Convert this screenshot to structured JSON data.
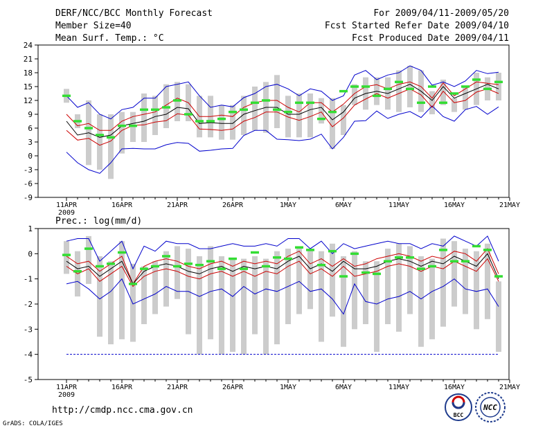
{
  "header": {
    "title": "DERF/NCC/BCC Monthly Forecast",
    "member": "Member Size=40",
    "for_range": "For 2009/04/11-2009/05/20",
    "started": "Fcst Started Refer Date 2009/04/10",
    "produced": "Fcst Produced Date 2009/04/11"
  },
  "footer": {
    "url": "http://cmdp.ncc.cma.gov.cn",
    "grads": "GrADS: COLA/IGES",
    "logo_bcc": "BCC",
    "logo_ncc": "NCC"
  },
  "colors": {
    "obs": "#33dd33",
    "box": "#cccccc",
    "mean": "#000000",
    "ens": "#cc0000",
    "ext": "#0000cc"
  },
  "chart_data": [
    {
      "type": "line",
      "title": "Mean Surf. Temp.: °C",
      "x_start": "2009-04-11",
      "x_days": 40,
      "xtick_labels": [
        "11APR",
        "16APR",
        "21APR",
        "26APR",
        "1MAY",
        "6MAY",
        "11MAY",
        "16MAY",
        "21MAY"
      ],
      "xtick_days": [
        0,
        5,
        10,
        15,
        20,
        25,
        30,
        35,
        40
      ],
      "x_year_label": "2009",
      "ylim": [
        -9,
        24
      ],
      "yticks": [
        -9,
        -6,
        -3,
        0,
        3,
        6,
        9,
        12,
        15,
        18,
        21,
        24
      ],
      "series": [
        {
          "name": "ensemble max",
          "values": [
            0.8,
            -1.5,
            -3,
            -3.8,
            -1.5,
            1.5,
            1.6,
            1.5,
            1.5,
            2.4,
            2.9,
            2.7,
            1,
            1.2,
            1.5,
            1.6,
            4.4,
            5.5,
            5.5,
            3.6,
            3.5,
            3.3,
            3.6,
            4.7,
            1.5,
            4,
            7.5,
            7.6,
            9.7,
            8.1,
            9,
            9.6,
            8.3,
            10.8,
            8.5,
            7.5,
            10,
            10.7,
            9,
            10.6
          ]
        },
        {
          "name": "ensemble upper",
          "values": [
            5.5,
            3.4,
            3.8,
            2.3,
            3.2,
            5.5,
            6.6,
            6.7,
            7.3,
            7.6,
            9.1,
            8.8,
            5.8,
            5.7,
            5.5,
            5.8,
            7.5,
            8.3,
            9.5,
            9.5,
            8.4,
            7.7,
            8.5,
            9.5,
            6.3,
            8.2,
            11,
            12.3,
            13.5,
            12.5,
            13.5,
            14.5,
            13.2,
            10.5,
            14,
            11.5,
            12,
            13.8,
            14.5,
            13.5
          ]
        },
        {
          "name": "ensemble mean",
          "values": [
            7.5,
            4.5,
            5,
            4,
            4.5,
            6.5,
            7,
            7.5,
            8.5,
            9,
            10.5,
            10.2,
            7,
            7.2,
            7,
            7,
            9,
            9.8,
            10.5,
            10.5,
            9,
            9,
            10,
            10.5,
            7.8,
            9.5,
            12.5,
            13.5,
            14,
            13.5,
            14.5,
            15.5,
            14,
            12,
            15,
            12.5,
            13.5,
            14.5,
            15.5,
            14.5
          ]
        },
        {
          "name": "ensemble lower",
          "values": [
            9,
            6.5,
            7,
            5.5,
            5.5,
            7.5,
            8.5,
            9,
            9.5,
            11,
            12.5,
            11.5,
            8.5,
            8.5,
            8.8,
            8.5,
            10.5,
            11.5,
            12,
            12,
            10.5,
            9.5,
            11.5,
            11.5,
            9.5,
            11.2,
            13.5,
            15,
            15.4,
            14.5,
            15.5,
            16,
            15,
            12.5,
            15.8,
            13,
            14.5,
            16,
            15.7,
            15.4
          ]
        },
        {
          "name": "ensemble min",
          "values": [
            13,
            10.5,
            11.5,
            9,
            8,
            10,
            10.5,
            12.5,
            12.5,
            15,
            15.5,
            16,
            13,
            10.5,
            11,
            10.6,
            12.6,
            13.5,
            15,
            15.5,
            14.5,
            13,
            14.5,
            14,
            12,
            13,
            17.5,
            18.5,
            16.5,
            17.5,
            18,
            19.5,
            18.5,
            15.3,
            16,
            15,
            16.2,
            18.5,
            17.8,
            18.1
          ]
        },
        {
          "name": "observed",
          "values": [
            13,
            7.5,
            6,
            4.5,
            4,
            6.5,
            6.5,
            10,
            10,
            10.5,
            12,
            9,
            7.5,
            7.5,
            8,
            9.5,
            10,
            11.5,
            12,
            10,
            9.5,
            11.5,
            11.5,
            8,
            9.5,
            14,
            15,
            15,
            13,
            14.5,
            16,
            14.5,
            11.5,
            15,
            11.5,
            13.5,
            15,
            16.5,
            14.5,
            16
          ]
        }
      ],
      "box_range": [
        [
          11.5,
          14.5
        ],
        [
          6,
          9
        ],
        [
          -2,
          12
        ],
        [
          -3,
          9
        ],
        [
          -5,
          9
        ],
        [
          0.5,
          9.5
        ],
        [
          3,
          9.5
        ],
        [
          3,
          13.5
        ],
        [
          4.5,
          13
        ],
        [
          6,
          15.5
        ],
        [
          7.5,
          16
        ],
        [
          7.5,
          15.5
        ],
        [
          4,
          13
        ],
        [
          4,
          13
        ],
        [
          3.5,
          11
        ],
        [
          3.5,
          11
        ],
        [
          4.5,
          13
        ],
        [
          5.5,
          15
        ],
        [
          5,
          16
        ],
        [
          6,
          17.5
        ],
        [
          4,
          13
        ],
        [
          4,
          13.5
        ],
        [
          4,
          13.5
        ],
        [
          7,
          12.5
        ],
        [
          1.5,
          12.5
        ],
        [
          4.5,
          11
        ],
        [
          11,
          15.5
        ],
        [
          10,
          17
        ],
        [
          11,
          17
        ],
        [
          10,
          17
        ],
        [
          9.5,
          18.5
        ],
        [
          10.5,
          19.5
        ],
        [
          9.5,
          18.5
        ],
        [
          9,
          14
        ],
        [
          11,
          16.5
        ],
        [
          9.5,
          12.5
        ],
        [
          10,
          15
        ],
        [
          11,
          18
        ],
        [
          12,
          17
        ],
        [
          12,
          18
        ]
      ]
    },
    {
      "type": "line",
      "title": "Prec.: log(mm/d)",
      "x_start": "2009-04-11",
      "x_days": 40,
      "xtick_labels": [
        "11APR",
        "16APR",
        "21APR",
        "26APR",
        "1MAY",
        "6MAY",
        "11MAY",
        "16MAY",
        "21MAY"
      ],
      "xtick_days": [
        0,
        5,
        10,
        15,
        20,
        25,
        30,
        35,
        40
      ],
      "x_year_label": "2009",
      "ylim": [
        -5,
        1
      ],
      "yticks": [
        -5,
        -4,
        -3,
        -2,
        -1,
        0,
        1
      ],
      "series": [
        {
          "name": "ensemble max",
          "values": [
            0.5,
            0.6,
            0.6,
            -0.3,
            0.1,
            0.5,
            -0.6,
            0.3,
            0.1,
            0.5,
            0.4,
            0.4,
            0.2,
            0.2,
            0.3,
            0.4,
            0.3,
            0.3,
            0.4,
            0.3,
            0.6,
            0.6,
            0.2,
            0.5,
            0,
            0.4,
            0.2,
            0.3,
            0.4,
            0.5,
            0.4,
            0.4,
            0.2,
            0.4,
            0.3,
            0.7,
            0.5,
            0.3,
            0.7,
            -0.3
          ]
        },
        {
          "name": "ensemble upper",
          "values": [
            -0.1,
            -0.4,
            -0.3,
            -0.7,
            -0.4,
            -0.1,
            -1.2,
            -0.5,
            -0.3,
            -0.2,
            -0.3,
            -0.5,
            -0.6,
            -0.4,
            -0.3,
            -0.5,
            -0.3,
            -0.4,
            -0.3,
            -0.4,
            -0.1,
            0.1,
            -0.4,
            -0.2,
            -0.5,
            -0.2,
            -0.5,
            -0.4,
            -0.2,
            -0.1,
            0,
            -0.1,
            -0.3,
            -0.1,
            -0.2,
            0.1,
            0,
            -0.3,
            0.2,
            -0.8
          ]
        },
        {
          "name": "ensemble mean",
          "values": [
            -0.3,
            -0.6,
            -0.5,
            -0.9,
            -0.6,
            -0.3,
            -1.2,
            -0.7,
            -0.5,
            -0.4,
            -0.5,
            -0.7,
            -0.8,
            -0.6,
            -0.5,
            -0.7,
            -0.5,
            -0.6,
            -0.5,
            -0.6,
            -0.3,
            -0.1,
            -0.6,
            -0.4,
            -0.7,
            -0.3,
            -0.6,
            -0.6,
            -0.5,
            -0.3,
            -0.2,
            -0.3,
            -0.5,
            -0.3,
            -0.4,
            -0.1,
            -0.3,
            -0.5,
            0,
            -1
          ]
        },
        {
          "name": "ensemble lower",
          "values": [
            -0.5,
            -0.8,
            -0.6,
            -1.1,
            -0.8,
            -0.5,
            -1.3,
            -0.9,
            -0.7,
            -0.6,
            -0.7,
            -0.9,
            -1,
            -0.8,
            -0.7,
            -0.9,
            -0.7,
            -0.9,
            -0.7,
            -0.8,
            -0.5,
            -0.3,
            -0.8,
            -0.6,
            -0.9,
            -0.5,
            -0.9,
            -0.8,
            -0.7,
            -0.5,
            -0.4,
            -0.5,
            -0.7,
            -0.5,
            -0.6,
            -0.3,
            -0.5,
            -0.7,
            -0.2,
            -1.1
          ]
        },
        {
          "name": "ensemble min",
          "values": [
            -1.2,
            -1.1,
            -1.4,
            -1.8,
            -1.5,
            -1,
            -2,
            -1.8,
            -1.6,
            -1.3,
            -1.5,
            -1.5,
            -1.7,
            -1.5,
            -1.4,
            -1.7,
            -1.3,
            -1.6,
            -1.4,
            -1.5,
            -1.3,
            -1.1,
            -1.5,
            -1.4,
            -1.8,
            -2.4,
            -1.2,
            -1.9,
            -2,
            -1.8,
            -1.7,
            -1.5,
            -1.8,
            -1.5,
            -1.3,
            -1,
            -1.4,
            -1.5,
            -1.4,
            -2.1
          ]
        },
        {
          "name": "observed",
          "values": [
            -0.05,
            -0.7,
            0.2,
            -0.5,
            -0.4,
            0.05,
            -1.2,
            -0.6,
            -0.5,
            -0.1,
            -0.5,
            -0.4,
            -0.45,
            -0.3,
            -0.6,
            -0.2,
            -0.6,
            0.05,
            -0.5,
            -0.15,
            -0.2,
            0.25,
            0.15,
            -0.45,
            0.1,
            -0.9,
            0,
            -0.75,
            -0.8,
            -0.3,
            -0.15,
            -0.15,
            -0.6,
            -0.5,
            0.15,
            -0.3,
            -0.3,
            0.3,
            0.15,
            -0.9
          ]
        }
      ],
      "box_range": [
        [
          -0.8,
          0.5
        ],
        [
          -1.7,
          0.1
        ],
        [
          -1.2,
          0.7
        ],
        [
          -3.3,
          -0.1
        ],
        [
          -3.6,
          -0.3
        ],
        [
          -3.4,
          0.5
        ],
        [
          -3.5,
          -0.4
        ],
        [
          -2.8,
          -0.5
        ],
        [
          -2.4,
          -0.3
        ],
        [
          -2.1,
          0.1
        ],
        [
          -1.8,
          0.3
        ],
        [
          -3.2,
          0.2
        ],
        [
          -4,
          -0.1
        ],
        [
          -3.4,
          0.3
        ],
        [
          -4,
          -0.1
        ],
        [
          -3.9,
          -0.2
        ],
        [
          -4,
          -0.2
        ],
        [
          -3.2,
          -0.1
        ],
        [
          -4,
          -0.2
        ],
        [
          -3.6,
          0.1
        ],
        [
          -2.8,
          0.2
        ],
        [
          -2.4,
          0.3
        ],
        [
          -2.2,
          0.2
        ],
        [
          -3.5,
          0.1
        ],
        [
          -2.5,
          0.4
        ],
        [
          -3.7,
          -0.1
        ],
        [
          -3,
          0.1
        ],
        [
          -2.8,
          -0.3
        ],
        [
          -3.9,
          -0.3
        ],
        [
          -2.8,
          0.2
        ],
        [
          -3.1,
          0.4
        ],
        [
          -2.4,
          0.3
        ],
        [
          -3.7,
          -0.1
        ],
        [
          -3.4,
          -0.2
        ],
        [
          -2.9,
          0.6
        ],
        [
          -2.1,
          0.5
        ],
        [
          -2.4,
          0.2
        ],
        [
          -3,
          0.1
        ],
        [
          -2.6,
          0.4
        ],
        [
          -3.9,
          -1.1
        ]
      ],
      "baseline": -4
    }
  ]
}
